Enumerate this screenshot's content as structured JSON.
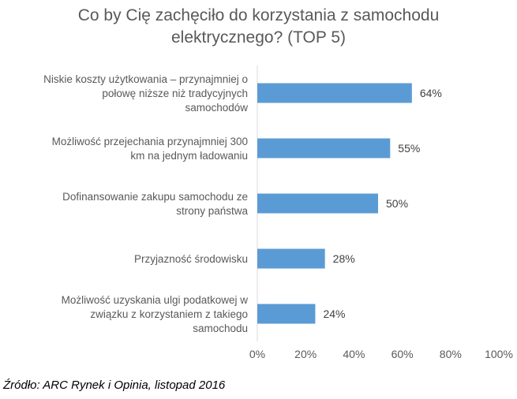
{
  "chart_data": {
    "type": "bar",
    "orientation": "horizontal",
    "title_lines": [
      "Co by Cię zachęciło do korzystania z samochodu",
      "elektrycznego? (TOP 5)"
    ],
    "categories": [
      [
        "Niskie koszty użytkowania – przynajmniej o",
        "połowę niższe niż tradycyjnych",
        "samochodów"
      ],
      [
        "Możliwość przejechania przynajmniej 300",
        "km na jednym ładowaniu"
      ],
      [
        "Dofinansowanie zakupu samochodu ze",
        "strony państwa"
      ],
      [
        "Przyjazność środowisku"
      ],
      [
        "Możliwość uzyskania ulgi podatkowej w",
        "związku z korzystaniem z takiego",
        "samochodu"
      ]
    ],
    "values": [
      64,
      55,
      50,
      28,
      24
    ],
    "data_labels": [
      "64%",
      "55%",
      "50%",
      "28%",
      "24%"
    ],
    "xlim": [
      0,
      100
    ],
    "x_ticks": [
      "0%",
      "20%",
      "40%",
      "60%",
      "80%",
      "100%"
    ],
    "bar_color": "#5B9BD5",
    "grid": false,
    "legend": "none"
  },
  "source": "Źródło: ARC Rynek i Opinia, listopad 2016"
}
